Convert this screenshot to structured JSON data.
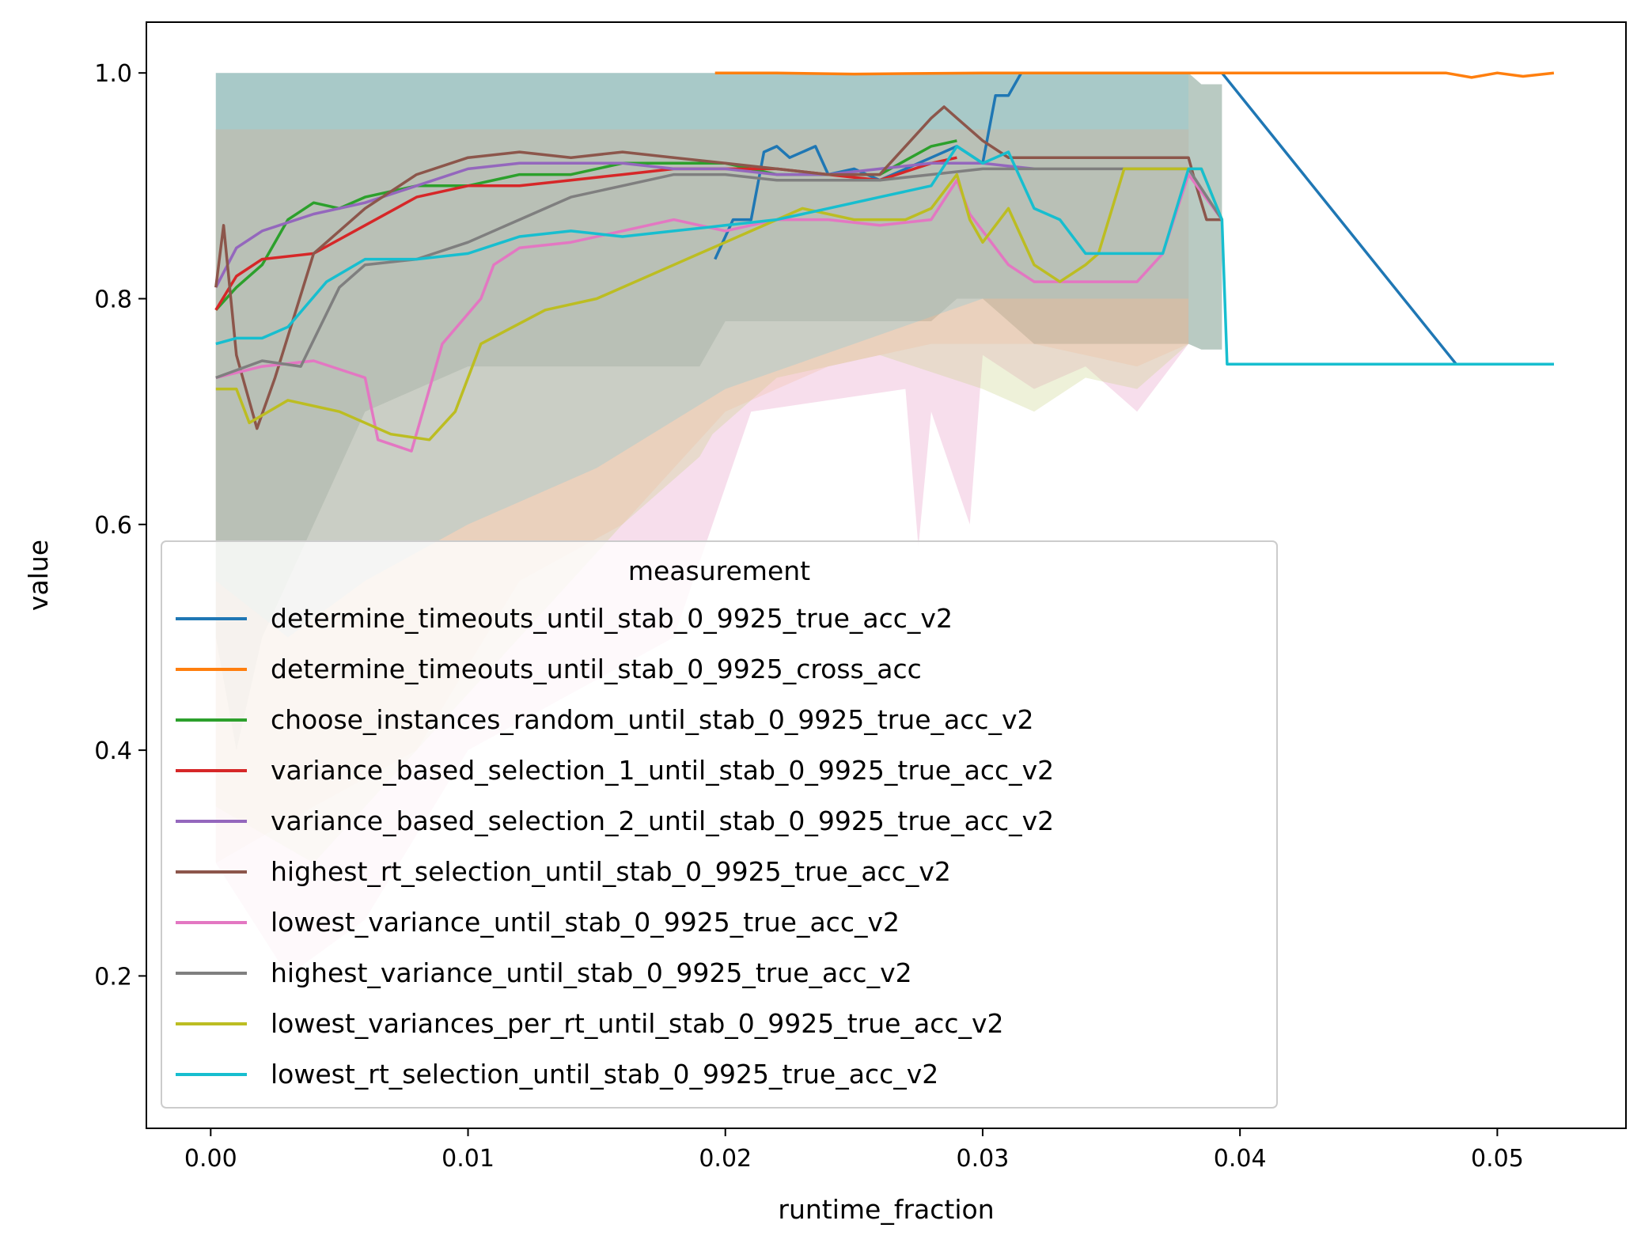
{
  "chart_data": {
    "type": "line",
    "xlabel": "runtime_fraction",
    "ylabel": "value",
    "xlim": [
      -0.0025,
      0.055
    ],
    "ylim": [
      0.065,
      1.045
    ],
    "xticks": [
      "0.00",
      "0.01",
      "0.02",
      "0.03",
      "0.04",
      "0.05"
    ],
    "xtick_values": [
      0.0,
      0.01,
      0.02,
      0.03,
      0.04,
      0.05
    ],
    "yticks": [
      "0.2",
      "0.4",
      "0.6",
      "0.8",
      "1.0"
    ],
    "ytick_values": [
      0.2,
      0.4,
      0.6,
      0.8,
      1.0
    ],
    "grid": false,
    "legend": {
      "title": "measurement",
      "placement": "lower-left"
    },
    "series": [
      {
        "name": "determine_timeouts_until_stab_0_9925_true_acc_v2",
        "color": "#1f77b4",
        "x": [
          0.0196,
          0.0203,
          0.021,
          0.0215,
          0.022,
          0.0225,
          0.0235,
          0.024,
          0.025,
          0.026,
          0.028,
          0.029,
          0.03,
          0.0305,
          0.031,
          0.0315,
          0.032,
          0.034,
          0.036,
          0.038,
          0.0393,
          0.0484,
          0.0522
        ],
        "y": [
          0.835,
          0.87,
          0.87,
          0.93,
          0.935,
          0.925,
          0.935,
          0.91,
          0.915,
          0.905,
          0.925,
          0.935,
          0.92,
          0.98,
          0.98,
          1.0,
          1.0,
          1.0,
          1.0,
          1.0,
          1.0,
          0.742,
          0.742
        ]
      },
      {
        "name": "determine_timeouts_until_stab_0_9925_cross_acc",
        "color": "#ff7f0e",
        "x": [
          0.0196,
          0.022,
          0.025,
          0.03,
          0.035,
          0.04,
          0.045,
          0.048,
          0.049,
          0.05,
          0.051,
          0.0522
        ],
        "y": [
          1.0,
          1.0,
          0.999,
          1.0,
          1.0,
          1.0,
          1.0,
          1.0,
          0.996,
          1.0,
          0.997,
          1.0
        ]
      },
      {
        "name": "choose_instances_random_until_stab_0_9925_true_acc_v2",
        "color": "#2ca02c",
        "x": [
          0.0002,
          0.001,
          0.002,
          0.003,
          0.004,
          0.005,
          0.006,
          0.008,
          0.01,
          0.012,
          0.014,
          0.016,
          0.018,
          0.02,
          0.022,
          0.024,
          0.026,
          0.028,
          0.029
        ],
        "y": [
          0.79,
          0.81,
          0.83,
          0.87,
          0.885,
          0.88,
          0.89,
          0.9,
          0.9,
          0.91,
          0.91,
          0.92,
          0.92,
          0.92,
          0.91,
          0.91,
          0.91,
          0.935,
          0.94
        ]
      },
      {
        "name": "variance_based_selection_1_until_stab_0_9925_true_acc_v2",
        "color": "#d62728",
        "x": [
          0.0002,
          0.001,
          0.002,
          0.004,
          0.006,
          0.008,
          0.01,
          0.012,
          0.014,
          0.016,
          0.018,
          0.02,
          0.022,
          0.024,
          0.026,
          0.028,
          0.029
        ],
        "y": [
          0.79,
          0.82,
          0.835,
          0.84,
          0.865,
          0.89,
          0.9,
          0.9,
          0.905,
          0.91,
          0.915,
          0.915,
          0.915,
          0.91,
          0.905,
          0.92,
          0.925
        ]
      },
      {
        "name": "variance_based_selection_2_until_stab_0_9925_true_acc_v2",
        "color": "#9467bd",
        "x": [
          0.0002,
          0.001,
          0.002,
          0.004,
          0.006,
          0.008,
          0.01,
          0.012,
          0.014,
          0.016,
          0.018,
          0.02,
          0.022,
          0.024,
          0.026,
          0.028,
          0.03,
          0.032
        ],
        "y": [
          0.81,
          0.845,
          0.86,
          0.875,
          0.885,
          0.9,
          0.915,
          0.92,
          0.92,
          0.92,
          0.915,
          0.915,
          0.91,
          0.91,
          0.915,
          0.92,
          0.92,
          0.915
        ]
      },
      {
        "name": "highest_rt_selection_until_stab_0_9925_true_acc_v2",
        "color": "#8c564b",
        "x": [
          0.0002,
          0.0005,
          0.001,
          0.0018,
          0.0025,
          0.004,
          0.006,
          0.008,
          0.01,
          0.012,
          0.014,
          0.016,
          0.018,
          0.02,
          0.022,
          0.024,
          0.026,
          0.028,
          0.0285,
          0.029,
          0.03,
          0.031,
          0.032,
          0.034,
          0.036,
          0.038,
          0.0383,
          0.0387,
          0.0393
        ],
        "y": [
          0.81,
          0.865,
          0.75,
          0.685,
          0.73,
          0.84,
          0.88,
          0.91,
          0.925,
          0.93,
          0.925,
          0.93,
          0.925,
          0.92,
          0.915,
          0.91,
          0.91,
          0.96,
          0.97,
          0.96,
          0.94,
          0.925,
          0.925,
          0.925,
          0.925,
          0.925,
          0.9,
          0.87,
          0.87
        ]
      },
      {
        "name": "lowest_variance_until_stab_0_9925_true_acc_v2",
        "color": "#e377c2",
        "x": [
          0.0002,
          0.002,
          0.004,
          0.006,
          0.0065,
          0.0078,
          0.0085,
          0.009,
          0.0105,
          0.011,
          0.012,
          0.014,
          0.016,
          0.018,
          0.02,
          0.022,
          0.024,
          0.026,
          0.028,
          0.029,
          0.0295,
          0.03,
          0.031,
          0.032,
          0.033,
          0.035,
          0.036,
          0.037,
          0.038,
          0.0393
        ],
        "y": [
          0.73,
          0.74,
          0.745,
          0.73,
          0.675,
          0.665,
          0.72,
          0.76,
          0.8,
          0.83,
          0.845,
          0.85,
          0.86,
          0.87,
          0.86,
          0.87,
          0.87,
          0.865,
          0.87,
          0.905,
          0.875,
          0.86,
          0.83,
          0.815,
          0.815,
          0.815,
          0.815,
          0.84,
          0.91,
          0.87
        ]
      },
      {
        "name": "highest_variance_until_stab_0_9925_true_acc_v2",
        "color": "#7f7f7f",
        "x": [
          0.0002,
          0.002,
          0.0035,
          0.005,
          0.006,
          0.008,
          0.01,
          0.012,
          0.014,
          0.016,
          0.018,
          0.02,
          0.022,
          0.024,
          0.026,
          0.028,
          0.03,
          0.032,
          0.034,
          0.036,
          0.038,
          0.0393
        ],
        "y": [
          0.73,
          0.745,
          0.74,
          0.81,
          0.83,
          0.835,
          0.85,
          0.87,
          0.89,
          0.9,
          0.91,
          0.91,
          0.905,
          0.905,
          0.905,
          0.91,
          0.915,
          0.915,
          0.915,
          0.915,
          0.915,
          0.87
        ]
      },
      {
        "name": "lowest_variances_per_rt_until_stab_0_9925_true_acc_v2",
        "color": "#bcbd22",
        "x": [
          0.0002,
          0.001,
          0.0015,
          0.003,
          0.005,
          0.007,
          0.0085,
          0.0095,
          0.0105,
          0.013,
          0.015,
          0.018,
          0.019,
          0.02,
          0.021,
          0.023,
          0.025,
          0.027,
          0.028,
          0.029,
          0.0295,
          0.03,
          0.031,
          0.032,
          0.033,
          0.034,
          0.0345,
          0.0355,
          0.037,
          0.038,
          0.0385,
          0.0393
        ],
        "y": [
          0.72,
          0.72,
          0.69,
          0.71,
          0.7,
          0.68,
          0.675,
          0.7,
          0.76,
          0.79,
          0.8,
          0.83,
          0.84,
          0.85,
          0.86,
          0.88,
          0.87,
          0.87,
          0.88,
          0.91,
          0.87,
          0.85,
          0.88,
          0.83,
          0.815,
          0.83,
          0.84,
          0.915,
          0.915,
          0.915,
          0.915,
          0.87
        ]
      },
      {
        "name": "lowest_rt_selection_until_stab_0_9925_true_acc_v2",
        "color": "#17becf",
        "x": [
          0.0002,
          0.001,
          0.002,
          0.003,
          0.0045,
          0.006,
          0.008,
          0.01,
          0.012,
          0.014,
          0.016,
          0.018,
          0.02,
          0.022,
          0.024,
          0.026,
          0.028,
          0.029,
          0.03,
          0.031,
          0.032,
          0.033,
          0.034,
          0.036,
          0.037,
          0.038,
          0.0385,
          0.0393,
          0.0395,
          0.0522
        ],
        "y": [
          0.76,
          0.765,
          0.765,
          0.775,
          0.815,
          0.835,
          0.835,
          0.84,
          0.855,
          0.86,
          0.855,
          0.86,
          0.865,
          0.87,
          0.88,
          0.89,
          0.9,
          0.935,
          0.92,
          0.93,
          0.88,
          0.87,
          0.84,
          0.84,
          0.84,
          0.915,
          0.915,
          0.87,
          0.742,
          0.742
        ]
      }
    ],
    "bands": [
      {
        "color": "#7f9f8f",
        "opacity": 0.55,
        "x": [
          0.0002,
          0.001,
          0.002,
          0.004,
          0.006,
          0.01,
          0.019,
          0.02,
          0.028,
          0.029,
          0.03,
          0.031,
          0.032,
          0.036,
          0.038,
          0.0385,
          0.0393
        ],
        "upper": [
          1.0,
          1.0,
          1.0,
          1.0,
          1.0,
          1.0,
          1.0,
          1.0,
          1.0,
          1.0,
          1.0,
          1.0,
          1.0,
          1.0,
          1.0,
          0.99,
          0.99
        ],
        "lower": [
          0.5,
          0.4,
          0.5,
          0.6,
          0.7,
          0.74,
          0.74,
          0.78,
          0.78,
          0.8,
          0.8,
          0.78,
          0.76,
          0.76,
          0.76,
          0.755,
          0.755
        ]
      },
      {
        "color": "#e8a0c8",
        "opacity": 0.35,
        "x": [
          0.0002,
          0.003,
          0.006,
          0.01,
          0.014,
          0.018,
          0.021,
          0.024,
          0.027,
          0.0275,
          0.028,
          0.0295,
          0.03,
          0.032,
          0.034,
          0.036,
          0.038
        ],
        "upper": [
          0.95,
          0.95,
          0.95,
          0.95,
          0.95,
          0.95,
          0.95,
          0.95,
          0.95,
          0.95,
          0.95,
          0.95,
          0.95,
          0.95,
          0.95,
          0.95,
          0.95
        ],
        "lower": [
          0.3,
          0.2,
          0.25,
          0.4,
          0.45,
          0.5,
          0.7,
          0.71,
          0.72,
          0.58,
          0.7,
          0.6,
          0.75,
          0.72,
          0.74,
          0.7,
          0.76
        ]
      },
      {
        "color": "#c8d080",
        "opacity": 0.3,
        "x": [
          0.0002,
          0.004,
          0.008,
          0.012,
          0.016,
          0.019,
          0.0195,
          0.022,
          0.026,
          0.03,
          0.032,
          0.034,
          0.036,
          0.038
        ],
        "upper": [
          0.95,
          0.95,
          0.95,
          0.95,
          0.95,
          0.95,
          0.95,
          0.95,
          0.95,
          0.95,
          0.95,
          0.95,
          0.95,
          0.95
        ],
        "lower": [
          0.35,
          0.3,
          0.4,
          0.5,
          0.6,
          0.66,
          0.68,
          0.73,
          0.75,
          0.72,
          0.7,
          0.73,
          0.72,
          0.76
        ]
      },
      {
        "color": "#f0b890",
        "opacity": 0.25,
        "x": [
          0.0002,
          0.004,
          0.008,
          0.012,
          0.016,
          0.02,
          0.024,
          0.028,
          0.032,
          0.036,
          0.038
        ],
        "upper": [
          0.95,
          0.95,
          0.95,
          0.95,
          0.95,
          0.95,
          0.95,
          0.95,
          0.95,
          0.95,
          0.95
        ],
        "lower": [
          0.3,
          0.35,
          0.4,
          0.55,
          0.6,
          0.7,
          0.74,
          0.76,
          0.76,
          0.74,
          0.76
        ]
      },
      {
        "color": "#80c8d8",
        "opacity": 0.3,
        "x": [
          0.0002,
          0.003,
          0.006,
          0.01,
          0.015,
          0.02,
          0.025,
          0.03,
          0.035,
          0.038
        ],
        "upper": [
          1.0,
          1.0,
          1.0,
          1.0,
          1.0,
          1.0,
          1.0,
          1.0,
          1.0,
          1.0
        ],
        "lower": [
          0.55,
          0.5,
          0.55,
          0.6,
          0.65,
          0.72,
          0.76,
          0.8,
          0.8,
          0.8
        ]
      }
    ]
  }
}
